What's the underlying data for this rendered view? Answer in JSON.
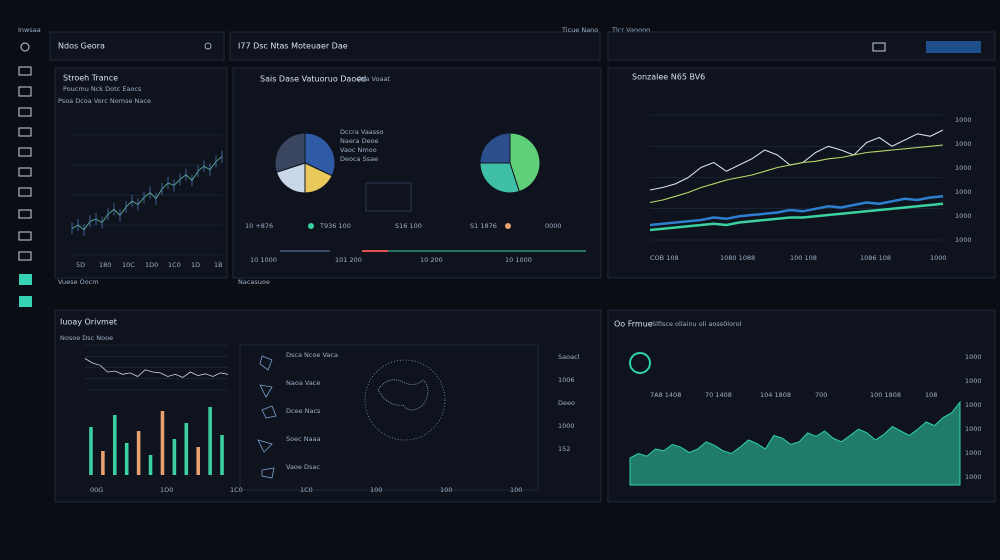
{
  "sidebar": {
    "label": "Inwsaa"
  },
  "topbar": {
    "search": "Ndos Geora",
    "title": "I77 Dsc Ntas Moteuaer Dae",
    "hint_left": "Ticue Nano",
    "hint_right": "Tlcr Vanooo"
  },
  "panel_stock": {
    "title": "Stroeh Trance",
    "subtitle": "Poucmu Nck Dotc Eaocs",
    "note": "Psoa Dcoa Vorc Nomse Nace",
    "footer": "Vuese Oocm",
    "x_labels": [
      "5D",
      "180",
      "10C",
      "1D0",
      "1C0",
      "1D",
      "1B"
    ],
    "chart": {
      "ylim": [
        0,
        100
      ],
      "color": "#5fae9a",
      "values": [
        22,
        25,
        21,
        28,
        30,
        27,
        34,
        38,
        33,
        40,
        45,
        42,
        48,
        52,
        47,
        55,
        60,
        58,
        63,
        67,
        62,
        70,
        74,
        71,
        78,
        82
      ]
    }
  },
  "panel_pies": {
    "title": "Sais Dase Vatuoruo Daoed",
    "subtitle": "Osa Voaat",
    "footer": "Nacasuoe",
    "legend": [
      "Dccra Vaasso",
      "Naera Deoe",
      "Vaoc Nmoo",
      "Deoca Ssae"
    ],
    "pie1": {
      "values": [
        32,
        18,
        20,
        30
      ],
      "colors": [
        "#2f5aa6",
        "#e8c95a",
        "#c9d7e8",
        "#3a4560"
      ]
    },
    "pie2": {
      "values": [
        45,
        30,
        25
      ],
      "colors": [
        "#5fcf7a",
        "#3fbfa8",
        "#2a4f8c"
      ]
    },
    "stats": [
      "10 +876",
      "T936 100",
      "S16 100",
      "S1 1876",
      "0000"
    ],
    "bottom": [
      "10 1000",
      "101 200",
      "10 200",
      "10 1000"
    ]
  },
  "panel_lines": {
    "title": "Sonzalee N65 BV6",
    "x_labels": [
      "COB 108",
      "1080 1088",
      "100 108",
      "1086 108",
      "1000"
    ],
    "y_labels": [
      "1000",
      "1000",
      "1000",
      "1000",
      "1000",
      "1000"
    ],
    "chart": {
      "ylim": [
        0,
        100
      ],
      "series": [
        {
          "color": "#d5deea",
          "values": [
            40,
            42,
            45,
            50,
            58,
            62,
            55,
            60,
            65,
            72,
            68,
            60,
            62,
            70,
            75,
            72,
            68,
            78,
            82,
            75,
            80,
            85,
            83,
            88
          ]
        },
        {
          "color": "#b8d96a",
          "values": [
            30,
            32,
            35,
            38,
            42,
            45,
            48,
            50,
            52,
            55,
            58,
            60,
            62,
            63,
            65,
            66,
            68,
            70,
            71,
            72,
            73,
            74,
            75,
            76
          ]
        },
        {
          "color": "#2f7fd0",
          "values": [
            12,
            13,
            14,
            15,
            16,
            18,
            17,
            19,
            20,
            21,
            22,
            24,
            23,
            25,
            27,
            26,
            28,
            30,
            29,
            31,
            33,
            32,
            34,
            35
          ]
        },
        {
          "color": "#3bd1a0",
          "values": [
            8,
            9,
            10,
            11,
            12,
            13,
            12,
            14,
            15,
            16,
            17,
            18,
            18,
            19,
            20,
            21,
            22,
            23,
            24,
            25,
            26,
            27,
            28,
            29
          ]
        }
      ]
    }
  },
  "panel_world": {
    "title": "Iuoay Orivmet",
    "subtitle": "Nosoe Dsc Nooe",
    "list": [
      "Dsca Ncoe Vaca",
      "Naoa Vace",
      "Dcee Nacs",
      "Soec Naaa",
      "Vaoe Dsac"
    ],
    "side": [
      "Saoacl",
      "1006",
      "Deeo",
      "1000",
      "152"
    ],
    "x_labels": [
      "00G",
      "1O0",
      "1C0",
      "1C0",
      "100",
      "100",
      "100"
    ],
    "line": {
      "ylim": [
        0,
        100
      ],
      "color": "#cfd8e3",
      "values": [
        70,
        60,
        55,
        40,
        42,
        35,
        38,
        30,
        45,
        40,
        38,
        30,
        35,
        28,
        40,
        32,
        36,
        30,
        38,
        35
      ]
    },
    "bars": {
      "ylim": [
        0,
        100
      ],
      "values": [
        60,
        30,
        75,
        40,
        55,
        25,
        80,
        45,
        65,
        35,
        85,
        50
      ],
      "colors": [
        "#3bd1a0",
        "#e8a070",
        "#3bd1a0",
        "#3bd1a0",
        "#e8a070",
        "#3bd1a0",
        "#e8a070",
        "#3bd1a0",
        "#3bd1a0",
        "#e8a070",
        "#3bd1a0",
        "#3bd1a0"
      ]
    }
  },
  "panel_area": {
    "title": "Oo Frmue",
    "subtitle": "Slfisce ollainu oli aoss0lorol",
    "readouts": [
      "7A8 1408",
      "70 1408",
      "104 1808",
      "700",
      "100 1808",
      "108"
    ],
    "y_labels": [
      "1000",
      "1000",
      "1000",
      "1000",
      "1000",
      "1000"
    ],
    "chart": {
      "ylim": [
        0,
        100
      ],
      "color": "#2fd3a8",
      "values": [
        30,
        35,
        32,
        40,
        38,
        45,
        42,
        36,
        40,
        48,
        44,
        38,
        35,
        42,
        50,
        46,
        40,
        55,
        52,
        45,
        48,
        58,
        54,
        60,
        52,
        48,
        55,
        62,
        58,
        50,
        56,
        65,
        60,
        55,
        62,
        70,
        66,
        75,
        80,
        92
      ]
    }
  }
}
